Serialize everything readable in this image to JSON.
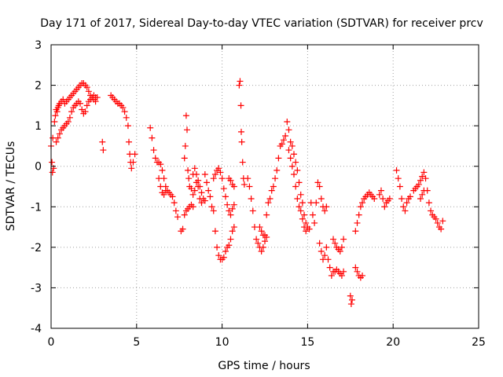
{
  "chart_data": {
    "type": "scatter",
    "title": "Day 171 of 2017, Sidereal Day-to-day VTEC variation (SDTVAR) for receiver prcv",
    "xlabel": "GPS time / hours",
    "ylabel": "SDTVAR / TECUs",
    "xlim": [
      0,
      25
    ],
    "ylim": [
      -4,
      3
    ],
    "xticks": [
      "0",
      "5",
      "10",
      "15",
      "20",
      "25"
    ],
    "yticks": [
      "-4",
      "-3",
      "-2",
      "-1",
      "0",
      "1",
      "2",
      "3"
    ],
    "grid": true,
    "marker": "plus",
    "color": "#ff0000",
    "series": [
      {
        "name": "SDTVAR",
        "points": [
          [
            0.0,
            0.5
          ],
          [
            0.05,
            0.1
          ],
          [
            0.08,
            -0.15
          ],
          [
            0.1,
            0.7
          ],
          [
            0.15,
            -0.05
          ],
          [
            0.2,
            1.1
          ],
          [
            0.25,
            1.25
          ],
          [
            0.3,
            1.4
          ],
          [
            0.35,
            1.35
          ],
          [
            0.4,
            1.45
          ],
          [
            0.45,
            1.5
          ],
          [
            0.5,
            1.55
          ],
          [
            0.6,
            1.6
          ],
          [
            0.7,
            1.65
          ],
          [
            0.8,
            1.55
          ],
          [
            0.9,
            1.6
          ],
          [
            1.0,
            1.65
          ],
          [
            1.1,
            1.7
          ],
          [
            1.2,
            1.75
          ],
          [
            1.3,
            1.8
          ],
          [
            1.4,
            1.85
          ],
          [
            1.5,
            1.9
          ],
          [
            1.6,
            1.95
          ],
          [
            1.7,
            2.0
          ],
          [
            1.8,
            2.05
          ],
          [
            1.9,
            2.05
          ],
          [
            2.0,
            2.0
          ],
          [
            2.1,
            1.95
          ],
          [
            2.2,
            1.85
          ],
          [
            2.3,
            1.75
          ],
          [
            2.4,
            1.7
          ],
          [
            2.5,
            1.65
          ],
          [
            2.6,
            1.6
          ],
          [
            2.7,
            1.7
          ],
          [
            0.3,
            0.6
          ],
          [
            0.4,
            0.7
          ],
          [
            0.5,
            0.8
          ],
          [
            0.6,
            0.9
          ],
          [
            0.7,
            0.95
          ],
          [
            0.8,
            1.0
          ],
          [
            0.9,
            1.05
          ],
          [
            1.0,
            1.1
          ],
          [
            1.1,
            1.2
          ],
          [
            1.2,
            1.35
          ],
          [
            1.3,
            1.45
          ],
          [
            1.4,
            1.5
          ],
          [
            1.5,
            1.55
          ],
          [
            1.6,
            1.6
          ],
          [
            1.7,
            1.55
          ],
          [
            1.8,
            1.4
          ],
          [
            1.9,
            1.3
          ],
          [
            2.0,
            1.35
          ],
          [
            2.1,
            1.5
          ],
          [
            2.2,
            1.6
          ],
          [
            2.3,
            1.65
          ],
          [
            2.4,
            1.7
          ],
          [
            2.5,
            1.75
          ],
          [
            2.6,
            1.7
          ],
          [
            3.0,
            0.6
          ],
          [
            3.05,
            0.4
          ],
          [
            3.5,
            1.75
          ],
          [
            3.6,
            1.7
          ],
          [
            3.7,
            1.65
          ],
          [
            3.8,
            1.6
          ],
          [
            3.9,
            1.55
          ],
          [
            4.0,
            1.55
          ],
          [
            4.1,
            1.5
          ],
          [
            4.2,
            1.45
          ],
          [
            4.3,
            1.35
          ],
          [
            4.4,
            1.2
          ],
          [
            4.5,
            1.0
          ],
          [
            4.55,
            0.6
          ],
          [
            4.6,
            0.3
          ],
          [
            4.65,
            0.1
          ],
          [
            4.7,
            -0.05
          ],
          [
            4.8,
            0.1
          ],
          [
            4.9,
            0.3
          ],
          [
            5.8,
            0.95
          ],
          [
            5.9,
            0.7
          ],
          [
            6.0,
            0.4
          ],
          [
            6.1,
            0.2
          ],
          [
            6.2,
            0.1
          ],
          [
            6.3,
            0.1
          ],
          [
            6.4,
            0.05
          ],
          [
            6.5,
            -0.1
          ],
          [
            6.6,
            -0.3
          ],
          [
            6.7,
            -0.5
          ],
          [
            6.8,
            -0.6
          ],
          [
            6.9,
            -0.65
          ],
          [
            7.0,
            -0.7
          ],
          [
            7.1,
            -0.75
          ],
          [
            7.2,
            -0.9
          ],
          [
            7.3,
            -1.1
          ],
          [
            7.4,
            -1.25
          ],
          [
            6.3,
            -0.3
          ],
          [
            6.4,
            -0.5
          ],
          [
            6.5,
            -0.65
          ],
          [
            6.6,
            -0.7
          ],
          [
            6.7,
            -0.6
          ],
          [
            7.6,
            -1.6
          ],
          [
            7.7,
            -1.55
          ],
          [
            7.8,
            0.2
          ],
          [
            7.85,
            0.5
          ],
          [
            7.9,
            1.25
          ],
          [
            7.95,
            0.9
          ],
          [
            8.0,
            -0.1
          ],
          [
            8.05,
            -0.3
          ],
          [
            8.1,
            -0.5
          ],
          [
            8.2,
            -0.55
          ],
          [
            8.3,
            -0.7
          ],
          [
            8.4,
            -0.6
          ],
          [
            8.5,
            -0.4
          ],
          [
            8.6,
            -0.35
          ],
          [
            8.7,
            -0.5
          ],
          [
            8.8,
            -0.65
          ],
          [
            8.9,
            -0.8
          ],
          [
            9.0,
            -0.85
          ],
          [
            7.8,
            -1.2
          ],
          [
            7.9,
            -1.1
          ],
          [
            8.0,
            -1.05
          ],
          [
            8.1,
            -1.0
          ],
          [
            8.2,
            -0.95
          ],
          [
            8.3,
            -1.0
          ],
          [
            8.3,
            -0.2
          ],
          [
            8.4,
            -0.05
          ],
          [
            8.5,
            -0.2
          ],
          [
            8.6,
            -0.5
          ],
          [
            8.7,
            -0.8
          ],
          [
            8.8,
            -0.9
          ],
          [
            9.0,
            -0.2
          ],
          [
            9.1,
            -0.4
          ],
          [
            9.2,
            -0.6
          ],
          [
            9.3,
            -0.75
          ],
          [
            9.4,
            -1.0
          ],
          [
            9.5,
            -1.1
          ],
          [
            9.6,
            -1.6
          ],
          [
            9.7,
            -2.0
          ],
          [
            9.8,
            -2.2
          ],
          [
            9.9,
            -2.3
          ],
          [
            10.0,
            -2.3
          ],
          [
            10.1,
            -2.25
          ],
          [
            10.2,
            -2.1
          ],
          [
            10.3,
            -2.0
          ],
          [
            10.4,
            -1.95
          ],
          [
            10.5,
            -1.8
          ],
          [
            10.6,
            -1.6
          ],
          [
            10.7,
            -1.5
          ],
          [
            9.5,
            -0.3
          ],
          [
            9.6,
            -0.2
          ],
          [
            9.7,
            -0.1
          ],
          [
            9.8,
            -0.05
          ],
          [
            9.9,
            -0.15
          ],
          [
            10.0,
            -0.3
          ],
          [
            10.1,
            -0.55
          ],
          [
            10.2,
            -0.75
          ],
          [
            10.3,
            -0.95
          ],
          [
            10.4,
            -1.1
          ],
          [
            10.5,
            -1.2
          ],
          [
            10.6,
            -1.05
          ],
          [
            10.7,
            -0.95
          ],
          [
            10.4,
            -0.3
          ],
          [
            10.5,
            -0.35
          ],
          [
            10.6,
            -0.45
          ],
          [
            10.7,
            -0.5
          ],
          [
            11.0,
            2.0
          ],
          [
            11.05,
            2.1
          ],
          [
            11.1,
            1.5
          ],
          [
            11.12,
            0.85
          ],
          [
            11.15,
            0.6
          ],
          [
            11.2,
            0.1
          ],
          [
            11.25,
            -0.3
          ],
          [
            11.3,
            -0.45
          ],
          [
            11.5,
            -0.3
          ],
          [
            11.6,
            -0.5
          ],
          [
            11.7,
            -0.8
          ],
          [
            11.8,
            -1.1
          ],
          [
            11.9,
            -1.5
          ],
          [
            12.0,
            -1.8
          ],
          [
            12.1,
            -1.9
          ],
          [
            12.2,
            -2.0
          ],
          [
            12.3,
            -2.1
          ],
          [
            12.4,
            -2.0
          ],
          [
            12.5,
            -1.7
          ],
          [
            12.6,
            -1.2
          ],
          [
            12.7,
            -0.9
          ],
          [
            12.8,
            -0.8
          ],
          [
            12.2,
            -1.5
          ],
          [
            12.3,
            -1.6
          ],
          [
            12.4,
            -1.7
          ],
          [
            12.5,
            -1.85
          ],
          [
            12.6,
            -1.75
          ],
          [
            12.9,
            -0.6
          ],
          [
            13.0,
            -0.5
          ],
          [
            13.1,
            -0.3
          ],
          [
            13.2,
            -0.1
          ],
          [
            13.3,
            0.2
          ],
          [
            13.4,
            0.5
          ],
          [
            13.5,
            0.55
          ],
          [
            13.6,
            0.65
          ],
          [
            13.7,
            0.75
          ],
          [
            13.8,
            1.1
          ],
          [
            13.9,
            0.9
          ],
          [
            14.0,
            0.6
          ],
          [
            14.1,
            0.5
          ],
          [
            14.2,
            0.3
          ],
          [
            14.3,
            0.1
          ],
          [
            14.4,
            -0.1
          ],
          [
            14.5,
            -0.4
          ],
          [
            14.6,
            -0.7
          ],
          [
            14.7,
            -0.9
          ],
          [
            14.8,
            -1.2
          ],
          [
            14.9,
            -1.4
          ],
          [
            15.0,
            -1.5
          ],
          [
            15.1,
            -1.55
          ],
          [
            13.9,
            0.4
          ],
          [
            14.0,
            0.2
          ],
          [
            14.1,
            0.0
          ],
          [
            14.2,
            -0.2
          ],
          [
            14.3,
            -0.5
          ],
          [
            14.4,
            -0.8
          ],
          [
            14.5,
            -1.0
          ],
          [
            14.6,
            -1.1
          ],
          [
            14.7,
            -1.3
          ],
          [
            14.8,
            -1.5
          ],
          [
            14.9,
            -1.6
          ],
          [
            15.2,
            -0.9
          ],
          [
            15.3,
            -1.2
          ],
          [
            15.4,
            -1.4
          ],
          [
            15.5,
            -0.9
          ],
          [
            15.6,
            -0.4
          ],
          [
            15.7,
            -0.5
          ],
          [
            15.8,
            -0.8
          ],
          [
            15.9,
            -1.0
          ],
          [
            16.0,
            -1.1
          ],
          [
            16.1,
            -1.0
          ],
          [
            15.7,
            -1.9
          ],
          [
            15.8,
            -2.1
          ],
          [
            15.9,
            -2.3
          ],
          [
            16.0,
            -2.2
          ],
          [
            16.1,
            -2.0
          ],
          [
            16.2,
            -2.3
          ],
          [
            16.3,
            -2.5
          ],
          [
            16.4,
            -2.7
          ],
          [
            16.5,
            -2.6
          ],
          [
            16.5,
            -1.8
          ],
          [
            16.6,
            -1.9
          ],
          [
            16.7,
            -2.0
          ],
          [
            16.8,
            -2.05
          ],
          [
            16.9,
            -2.1
          ],
          [
            17.0,
            -2.0
          ],
          [
            17.1,
            -1.8
          ],
          [
            16.6,
            -2.6
          ],
          [
            16.7,
            -2.55
          ],
          [
            16.8,
            -2.6
          ],
          [
            16.9,
            -2.65
          ],
          [
            17.0,
            -2.7
          ],
          [
            17.1,
            -2.6
          ],
          [
            17.5,
            -3.2
          ],
          [
            17.55,
            -3.4
          ],
          [
            17.6,
            -3.3
          ],
          [
            17.8,
            -2.5
          ],
          [
            17.9,
            -2.6
          ],
          [
            18.0,
            -2.7
          ],
          [
            18.1,
            -2.75
          ],
          [
            18.2,
            -2.7
          ],
          [
            17.8,
            -1.6
          ],
          [
            17.9,
            -1.4
          ],
          [
            18.0,
            -1.2
          ],
          [
            18.1,
            -1.0
          ],
          [
            18.2,
            -0.9
          ],
          [
            18.3,
            -0.8
          ],
          [
            18.4,
            -0.75
          ],
          [
            18.5,
            -0.7
          ],
          [
            18.6,
            -0.65
          ],
          [
            18.7,
            -0.7
          ],
          [
            18.8,
            -0.75
          ],
          [
            18.9,
            -0.8
          ],
          [
            19.2,
            -0.7
          ],
          [
            19.3,
            -0.6
          ],
          [
            19.4,
            -0.8
          ],
          [
            19.5,
            -1.0
          ],
          [
            19.6,
            -0.9
          ],
          [
            19.7,
            -0.85
          ],
          [
            19.8,
            -0.8
          ],
          [
            20.2,
            -0.1
          ],
          [
            20.3,
            -0.3
          ],
          [
            20.4,
            -0.5
          ],
          [
            20.5,
            -0.8
          ],
          [
            20.6,
            -1.0
          ],
          [
            20.7,
            -1.1
          ],
          [
            20.8,
            -0.9
          ],
          [
            20.9,
            -0.8
          ],
          [
            21.0,
            -0.75
          ],
          [
            21.2,
            -0.6
          ],
          [
            21.3,
            -0.55
          ],
          [
            21.4,
            -0.5
          ],
          [
            21.5,
            -0.45
          ],
          [
            21.6,
            -0.35
          ],
          [
            21.7,
            -0.25
          ],
          [
            21.8,
            -0.15
          ],
          [
            21.9,
            -0.3
          ],
          [
            22.0,
            -0.6
          ],
          [
            22.1,
            -0.9
          ],
          [
            22.2,
            -1.1
          ],
          [
            22.3,
            -1.2
          ],
          [
            22.4,
            -1.25
          ],
          [
            22.5,
            -1.3
          ],
          [
            22.6,
            -1.4
          ],
          [
            22.7,
            -1.5
          ],
          [
            22.8,
            -1.55
          ],
          [
            22.9,
            -1.35
          ],
          [
            21.6,
            -0.8
          ],
          [
            21.7,
            -0.7
          ],
          [
            21.8,
            -0.6
          ]
        ]
      }
    ]
  }
}
